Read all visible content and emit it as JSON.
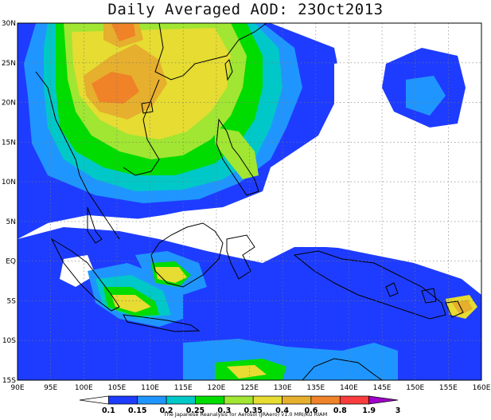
{
  "title": "Daily Averaged AOD: 23Oct2013",
  "credit": "The Japanese Reanalysis for Aerosol (JRAero) v1.0 MRI/KU RIAM",
  "map": {
    "lon_range": [
      90,
      160
    ],
    "lat_range": [
      -15,
      30
    ],
    "lon_ticks": [
      "90E",
      "95E",
      "100E",
      "105E",
      "110E",
      "115E",
      "120E",
      "125E",
      "130E",
      "135E",
      "140E",
      "145E",
      "150E",
      "155E",
      "160E"
    ],
    "lat_ticks": [
      "30N",
      "25N",
      "20N",
      "15N",
      "10N",
      "5N",
      "EQ",
      "5S",
      "10S",
      "15S"
    ],
    "grid": "dotted"
  },
  "colorbar": {
    "labels": [
      "0.1",
      "0.15",
      "0.2",
      "0.25",
      "0.3",
      "0.35",
      "0.4",
      "0.6",
      "0.8",
      "1.9",
      "3"
    ],
    "colors": [
      "#ffffff",
      "#1e3cff",
      "#1f96ff",
      "#00c8c8",
      "#00dc00",
      "#a0e632",
      "#e6dc32",
      "#e6af2d",
      "#f08228",
      "#fa3c3c",
      "#a000c8"
    ]
  }
}
